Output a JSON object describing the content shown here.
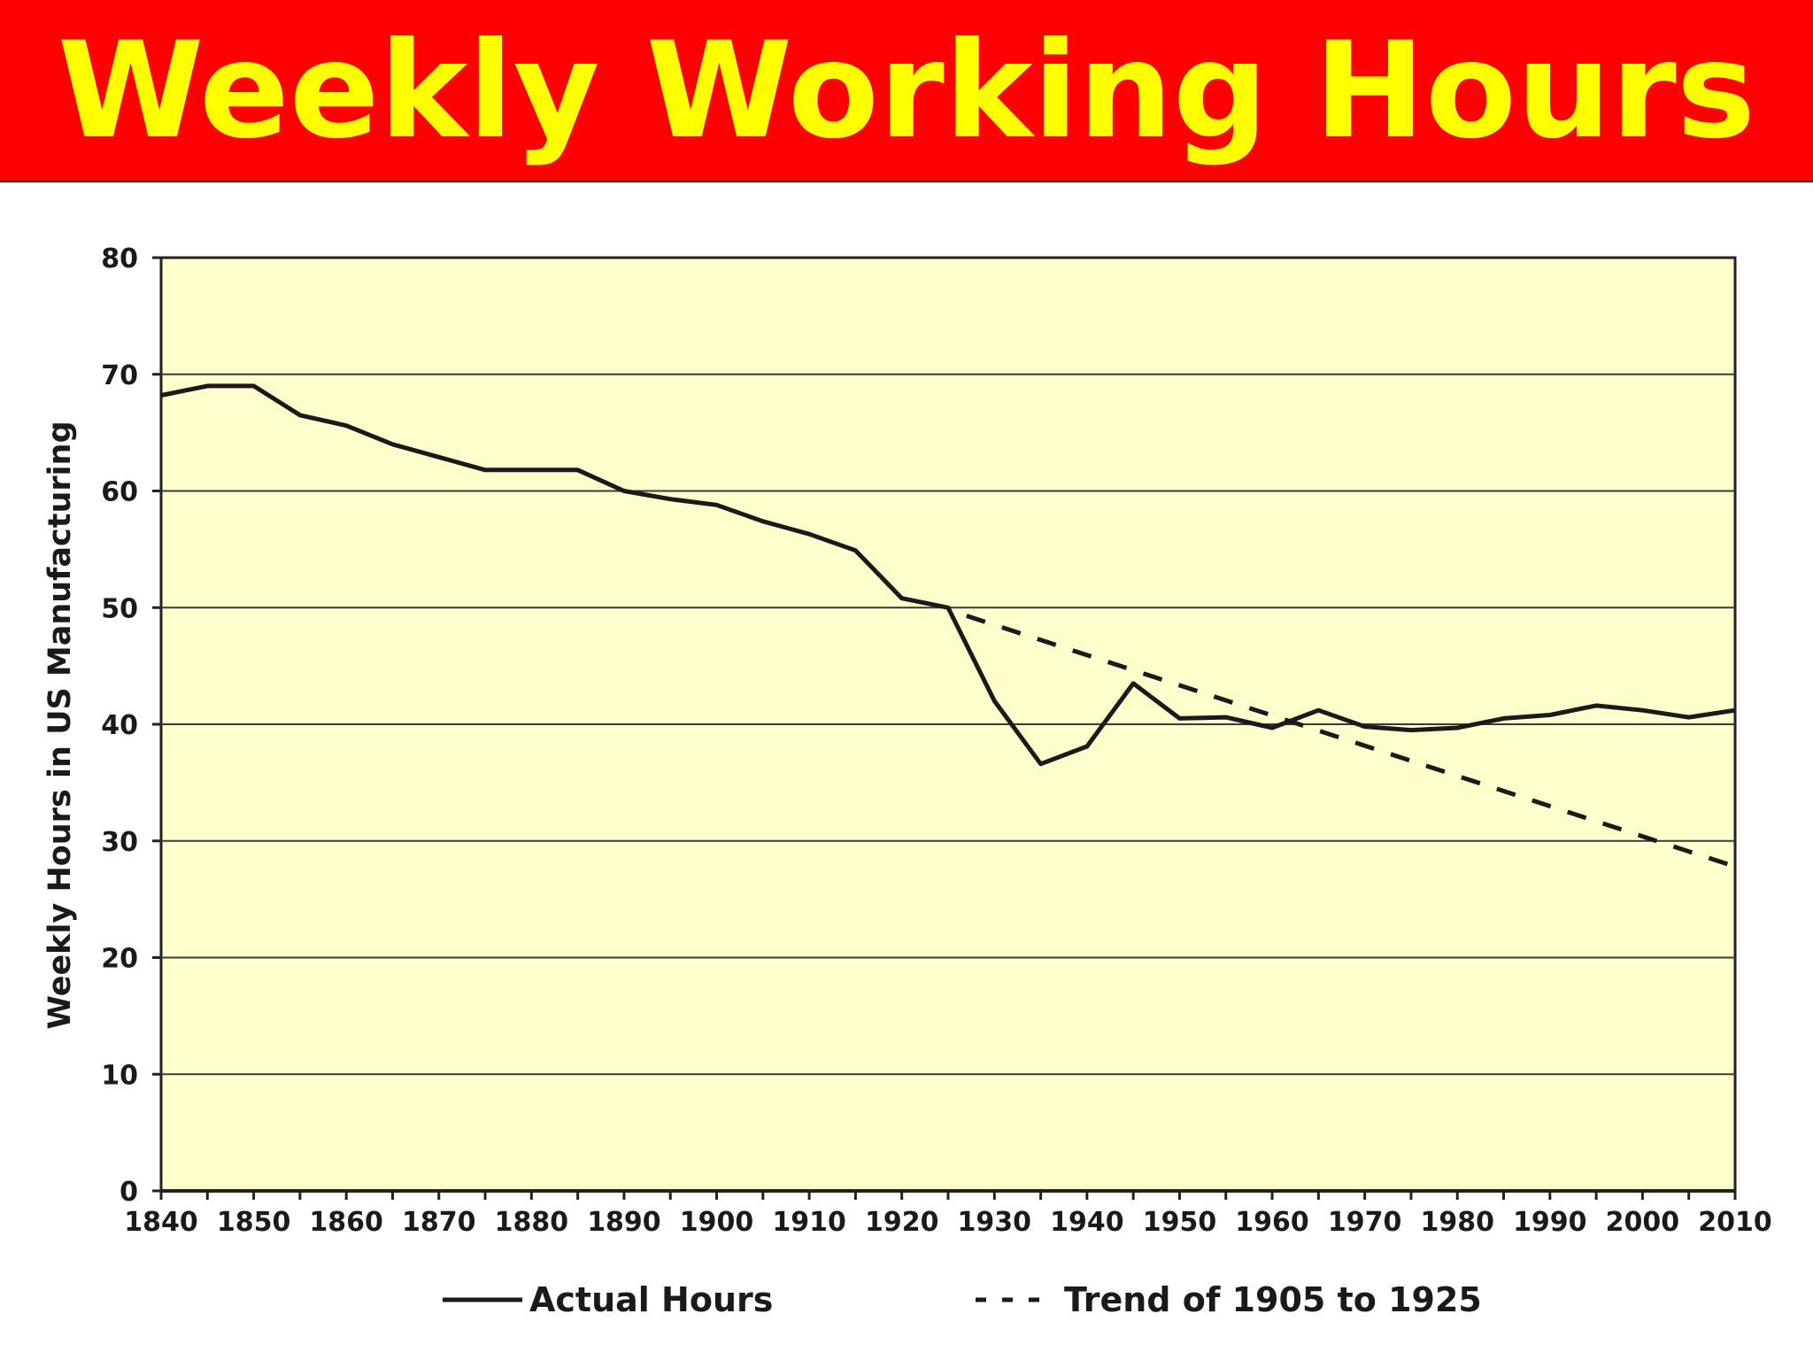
{
  "slide": {
    "title": "Weekly Working Hours",
    "banner_color": "#ff0000",
    "title_color": "#ffff00"
  },
  "chart_data": {
    "type": "line",
    "title": "",
    "xlabel": "",
    "ylabel": "Weekly Hours in US Manufacturing",
    "xlim": [
      1840,
      2010
    ],
    "ylim": [
      0,
      80
    ],
    "x_ticks": [
      1840,
      1850,
      1860,
      1870,
      1880,
      1890,
      1900,
      1910,
      1920,
      1930,
      1940,
      1950,
      1960,
      1970,
      1980,
      1990,
      2000,
      2010
    ],
    "y_ticks": [
      0,
      10,
      20,
      30,
      40,
      50,
      60,
      70,
      80
    ],
    "grid": "horizontal",
    "plot_background": "#ffffcc",
    "legend_position": "bottom",
    "series": [
      {
        "name": "Actual Hours",
        "style": "solid",
        "color": "#1a1a1a",
        "x": [
          1840,
          1845,
          1850,
          1855,
          1860,
          1865,
          1870,
          1875,
          1880,
          1885,
          1890,
          1895,
          1900,
          1905,
          1910,
          1915,
          1920,
          1925,
          1930,
          1935,
          1940,
          1945,
          1950,
          1955,
          1960,
          1965,
          1970,
          1975,
          1980,
          1985,
          1990,
          1995,
          2000,
          2005,
          2010
        ],
        "y": [
          68.2,
          69,
          69,
          66.5,
          65.6,
          64,
          62.9,
          61.8,
          61.8,
          61.8,
          60,
          59.3,
          58.8,
          57.4,
          56.3,
          54.9,
          50.8,
          50,
          42,
          36.6,
          38.1,
          43.5,
          40.5,
          40.6,
          39.7,
          41.2,
          39.8,
          39.5,
          39.7,
          40.5,
          40.8,
          41.6,
          41.2,
          40.6,
          41.2
        ]
      },
      {
        "name": "Trend of 1905 to 1925",
        "style": "dashed",
        "color": "#1a1a1a",
        "x": [
          1927,
          2010
        ],
        "y": [
          49.3,
          27.8
        ]
      }
    ]
  }
}
